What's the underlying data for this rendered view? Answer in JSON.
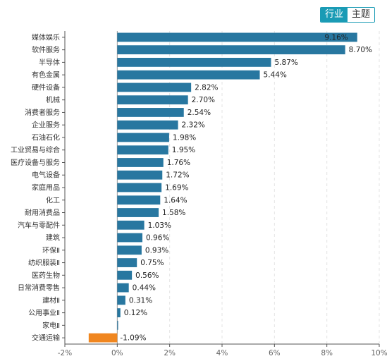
{
  "toggle": {
    "industry_label": "行业",
    "theme_label": "主题"
  },
  "chart_data": {
    "type": "bar",
    "orientation": "horizontal",
    "categories": [
      "媒体娱乐",
      "软件服务",
      "半导体",
      "有色金属",
      "硬件设备",
      "机械",
      "消费者服务",
      "企业服务",
      "石油石化",
      "工业贸易与综合",
      "医疗设备与服务",
      "电气设备",
      "家庭用品",
      "化工",
      "耐用消费品",
      "汽车与零配件",
      "建筑",
      "环保Ⅱ",
      "纺织服装Ⅱ",
      "医药生物",
      "日常消费零售",
      "建材Ⅱ",
      "公用事业Ⅱ",
      "家电Ⅱ",
      "交通运输"
    ],
    "values": [
      9.16,
      8.7,
      5.87,
      5.44,
      2.82,
      2.7,
      2.54,
      2.32,
      1.98,
      1.95,
      1.76,
      1.72,
      1.69,
      1.64,
      1.58,
      1.03,
      0.96,
      0.93,
      0.75,
      0.56,
      0.44,
      0.31,
      0.12,
      0.03,
      -1.09
    ],
    "value_labels": [
      "9.16%",
      "8.70%",
      "5.87%",
      "5.44%",
      "2.82%",
      "2.70%",
      "2.54%",
      "2.32%",
      "1.98%",
      "1.95%",
      "1.76%",
      "1.72%",
      "1.69%",
      "1.64%",
      "1.58%",
      "1.03%",
      "0.96%",
      "0.93%",
      "0.75%",
      "0.56%",
      "0.44%",
      "0.31%",
      "0.12%",
      "",
      "-1.09%"
    ],
    "xlim": [
      -2,
      10
    ],
    "x_ticks": [
      "-2%",
      "0%",
      "2%",
      "4%",
      "6%",
      "8%",
      "10%"
    ],
    "grid": "vertical dashed",
    "colors": {
      "positive": "#2877a0",
      "negative": "#f0861f"
    }
  }
}
